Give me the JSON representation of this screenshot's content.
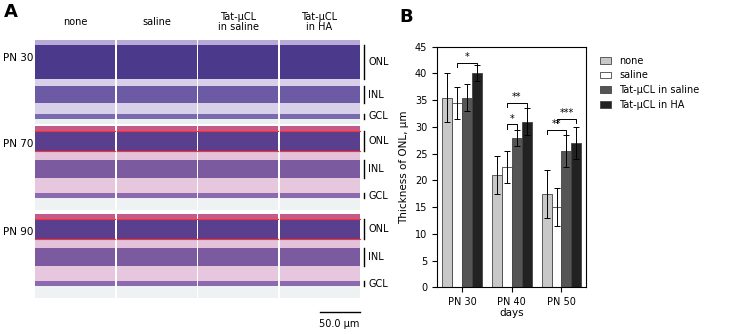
{
  "panel_labels": [
    "A",
    "B"
  ],
  "panel_a": {
    "columns": [
      "none",
      "saline",
      "Tat-µCL\nin saline",
      "Tat-µCL\nin HA"
    ],
    "rows": [
      "PN 30",
      "PN 70",
      "PN 90"
    ],
    "layers": [
      "ONL",
      "INL",
      "GCL"
    ],
    "scale_bar": "50.0 µm"
  },
  "chart_data": {
    "type": "bar",
    "categories": [
      "PN 30",
      "PN 40",
      "PN 50"
    ],
    "x_label": "days",
    "y_label": "Thickness of ONL, µm",
    "ylim": [
      0,
      45
    ],
    "yticks": [
      0,
      5,
      10,
      15,
      20,
      25,
      30,
      35,
      40,
      45
    ],
    "legend": "upper left",
    "series": [
      {
        "name": "none",
        "color": "#c8c8c8",
        "values": [
          35.5,
          21,
          17.5
        ],
        "errors": [
          4.5,
          3.5,
          4.5
        ]
      },
      {
        "name": "saline",
        "color": "#ffffff",
        "values": [
          34.5,
          22.5,
          15
        ],
        "errors": [
          3,
          3,
          3.5
        ]
      },
      {
        "name": "Tat-µCL in saline",
        "color": "#555555",
        "values": [
          35.5,
          28,
          25.5
        ],
        "errors": [
          2.5,
          1.5,
          3
        ]
      },
      {
        "name": "Tat-µCL in HA",
        "color": "#222222",
        "values": [
          40,
          31,
          27
        ],
        "errors": [
          1.5,
          2.5,
          3
        ]
      }
    ],
    "annotations": [
      {
        "category": "PN 30",
        "from": "saline",
        "to": "Tat-µCL in HA",
        "text": "*",
        "y": 42
      },
      {
        "category": "PN 40",
        "from": "saline",
        "to": "Tat-µCL in saline",
        "text": "*",
        "y": 30.5
      },
      {
        "category": "PN 40",
        "from": "saline",
        "to": "Tat-µCL in HA",
        "text": "**",
        "y": 34.5
      },
      {
        "category": "PN 50",
        "from": "none",
        "to": "Tat-µCL in saline",
        "text": "**",
        "y": 29.5
      },
      {
        "category": "PN 50",
        "from": "saline",
        "to": "Tat-µCL in HA",
        "text": "***",
        "y": 31.5
      }
    ]
  }
}
